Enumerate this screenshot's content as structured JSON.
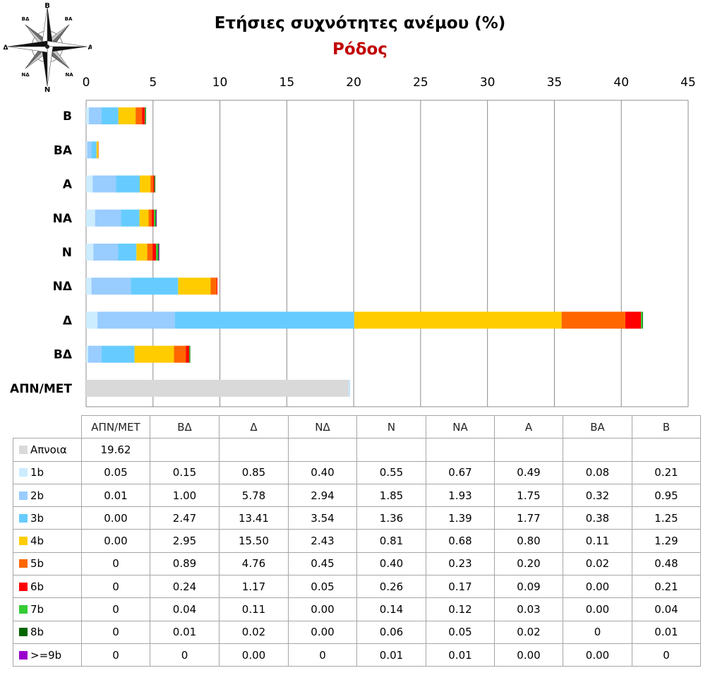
{
  "title": "Ετήσιες συχνότητες ανέμου (%)",
  "subtitle": "Ρόδος",
  "compass": {
    "labels": [
      "Β",
      "ΒΑ",
      "Α",
      "ΝΑ",
      "Ν",
      "ΝΔ",
      "Δ",
      "ΒΔ"
    ]
  },
  "chart_data": {
    "type": "bar",
    "orientation": "horizontal",
    "stacked": true,
    "title": "Ετήσιες συχνότητες ανέμου (%)",
    "subtitle": "Ρόδος",
    "categories": [
      "ΑΠΝ/ΜΕΤ",
      "ΒΔ",
      "Δ",
      "ΝΔ",
      "Ν",
      "ΝΑ",
      "Α",
      "ΒΑ",
      "Β"
    ],
    "plot_order_top_to_bottom": [
      "Β",
      "ΒΑ",
      "Α",
      "ΝΑ",
      "Ν",
      "ΝΔ",
      "Δ",
      "ΒΔ",
      "ΑΠΝ/ΜΕΤ"
    ],
    "xlim": [
      0,
      45
    ],
    "xticks": [
      "0",
      "5",
      "10",
      "15",
      "20",
      "25",
      "30",
      "35",
      "40",
      "45"
    ],
    "xtick_values": [
      0,
      5,
      10,
      15,
      20,
      25,
      30,
      35,
      40,
      45
    ],
    "grid": "vertical",
    "series": [
      {
        "name": "Απνοια",
        "color": "#d9d9d9",
        "values": [
          19.62,
          null,
          null,
          null,
          null,
          null,
          null,
          null,
          null
        ],
        "labels": [
          "19.62",
          "",
          "",
          "",
          "",
          "",
          "",
          "",
          ""
        ]
      },
      {
        "name": "1b",
        "color": "#ccecff",
        "values": [
          0.05,
          0.15,
          0.85,
          0.4,
          0.55,
          0.67,
          0.49,
          0.08,
          0.21
        ],
        "labels": [
          "0.05",
          "0.15",
          "0.85",
          "0.40",
          "0.55",
          "0.67",
          "0.49",
          "0.08",
          "0.21"
        ]
      },
      {
        "name": "2b",
        "color": "#99ccff",
        "values": [
          0.01,
          1.0,
          5.78,
          2.94,
          1.85,
          1.93,
          1.75,
          0.32,
          0.95
        ],
        "labels": [
          "0.01",
          "1.00",
          "5.78",
          "2.94",
          "1.85",
          "1.93",
          "1.75",
          "0.32",
          "0.95"
        ]
      },
      {
        "name": "3b",
        "color": "#66ccff",
        "values": [
          0.0,
          2.47,
          13.41,
          3.54,
          1.36,
          1.39,
          1.77,
          0.38,
          1.25
        ],
        "labels": [
          "0.00",
          "2.47",
          "13.41",
          "3.54",
          "1.36",
          "1.39",
          "1.77",
          "0.38",
          "1.25"
        ]
      },
      {
        "name": "4b",
        "color": "#ffcc00",
        "values": [
          0.0,
          2.95,
          15.5,
          2.43,
          0.81,
          0.68,
          0.8,
          0.11,
          1.29
        ],
        "labels": [
          "0.00",
          "2.95",
          "15.50",
          "2.43",
          "0.81",
          "0.68",
          "0.80",
          "0.11",
          "1.29"
        ]
      },
      {
        "name": "5b",
        "color": "#ff6600",
        "values": [
          0,
          0.89,
          4.76,
          0.45,
          0.4,
          0.23,
          0.2,
          0.02,
          0.48
        ],
        "labels": [
          "0",
          "0.89",
          "4.76",
          "0.45",
          "0.40",
          "0.23",
          "0.20",
          "0.02",
          "0.48"
        ]
      },
      {
        "name": "6b",
        "color": "#ff0000",
        "values": [
          0,
          0.24,
          1.17,
          0.05,
          0.26,
          0.17,
          0.09,
          0.0,
          0.21
        ],
        "labels": [
          "0",
          "0.24",
          "1.17",
          "0.05",
          "0.26",
          "0.17",
          "0.09",
          "0.00",
          "0.21"
        ]
      },
      {
        "name": "7b",
        "color": "#33cc33",
        "values": [
          0,
          0.04,
          0.11,
          0.0,
          0.14,
          0.12,
          0.03,
          0.0,
          0.04
        ],
        "labels": [
          "0",
          "0.04",
          "0.11",
          "0.00",
          "0.14",
          "0.12",
          "0.03",
          "0.00",
          "0.04"
        ]
      },
      {
        "name": "8b",
        "color": "#006600",
        "values": [
          0,
          0.01,
          0.02,
          0.0,
          0.06,
          0.05,
          0.02,
          0,
          0.01
        ],
        "labels": [
          "0",
          "0.01",
          "0.02",
          "0.00",
          "0.06",
          "0.05",
          "0.02",
          "0",
          "0.01"
        ]
      },
      {
        "name": ">=9b",
        "color": "#9900cc",
        "values": [
          0,
          0,
          0.0,
          0,
          0.01,
          0.01,
          0.0,
          0.0,
          0
        ],
        "labels": [
          "0",
          "0",
          "0.00",
          "0",
          "0.01",
          "0.01",
          "0.00",
          "0.00",
          "0"
        ]
      }
    ]
  }
}
